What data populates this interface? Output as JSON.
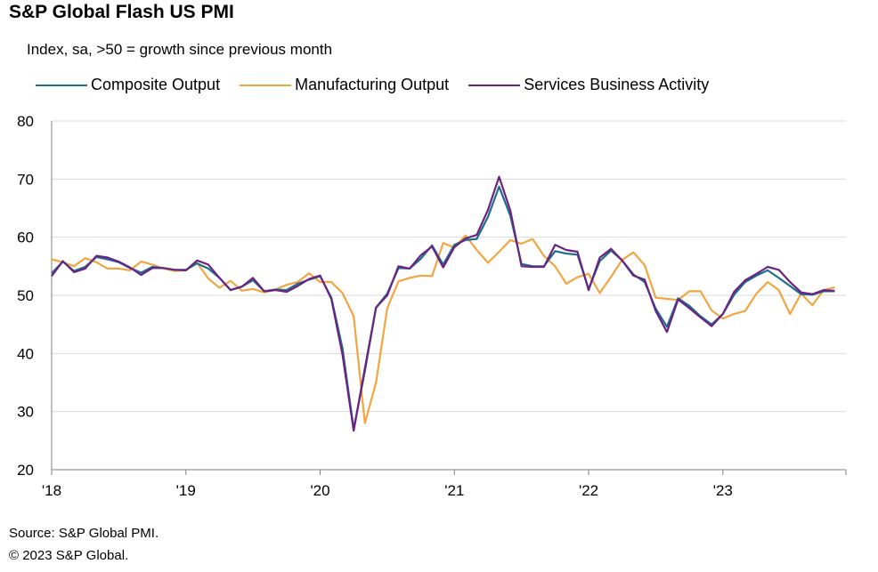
{
  "title": "S&P Global Flash US PMI",
  "subtitle": "Index, sa, >50 = growth since previous month",
  "footer": {
    "source": "Source: S&P Global PMI.",
    "copyright": "© 2023 S&P Global."
  },
  "chart_data": {
    "type": "line",
    "title": "S&P Global Flash US PMI",
    "subtitle": "Index, sa, >50 = growth since previous month",
    "x_start": "2018-01",
    "x_frequency": "monthly",
    "x_tick_labels": [
      "'18",
      "'19",
      "'20",
      "'21",
      "'22",
      "'23"
    ],
    "y_ticks": [
      20,
      30,
      40,
      50,
      60,
      70,
      80
    ],
    "ylim": [
      20,
      80
    ],
    "grid": "horizontal",
    "legend_position": "top",
    "series": [
      {
        "name": "Composite Output",
        "color": "#1f6e8c",
        "values": [
          53.8,
          55.8,
          54.2,
          54.9,
          56.6,
          56.2,
          55.7,
          54.7,
          53.9,
          54.9,
          54.7,
          54.4,
          54.4,
          55.5,
          54.6,
          53.0,
          50.9,
          51.5,
          52.6,
          50.7,
          51.0,
          50.9,
          52.0,
          52.7,
          53.3,
          49.6,
          40.9,
          27.0,
          37.0,
          47.9,
          50.3,
          54.7,
          54.6,
          56.3,
          58.6,
          55.3,
          58.7,
          59.5,
          59.7,
          63.5,
          68.7,
          63.7,
          55.4,
          55.0,
          55.0,
          57.6,
          57.2,
          57.0,
          51.1,
          55.9,
          57.7,
          56.0,
          53.6,
          52.3,
          47.7,
          44.6,
          49.5,
          48.2,
          46.4,
          45.0,
          46.8,
          50.1,
          52.3,
          53.4,
          54.3,
          53.0,
          51.6,
          50.2,
          50.1,
          50.7,
          50.7
        ]
      },
      {
        "name": "Manufacturing Output",
        "color": "#f2a541",
        "values": [
          56.2,
          55.7,
          55.0,
          56.4,
          55.7,
          54.6,
          54.6,
          54.3,
          55.8,
          55.3,
          54.6,
          54.2,
          54.3,
          55.6,
          52.9,
          51.3,
          52.5,
          50.8,
          51.1,
          50.5,
          51.0,
          51.8,
          52.3,
          53.8,
          52.3,
          52.3,
          50.4,
          46.4,
          28.0,
          35.0,
          47.8,
          52.4,
          53.0,
          53.4,
          53.3,
          59.0,
          58.2,
          60.3,
          57.8,
          55.6,
          57.5,
          59.5,
          58.9,
          59.7,
          56.8,
          55.0,
          52.0,
          53.1,
          53.7,
          50.4,
          53.2,
          56.1,
          57.4,
          55.2,
          49.6,
          49.4,
          49.2,
          50.7,
          50.7,
          47.4,
          46.0,
          46.8,
          47.3,
          50.3,
          52.3,
          50.9,
          46.8,
          50.3,
          48.3,
          50.9,
          51.4
        ]
      },
      {
        "name": "Services Business Activity",
        "color": "#6a2382",
        "values": [
          53.3,
          55.9,
          54.0,
          54.6,
          56.8,
          56.5,
          55.8,
          54.8,
          53.5,
          54.7,
          54.7,
          54.4,
          54.3,
          56.0,
          55.3,
          53.0,
          50.9,
          51.5,
          53.0,
          50.7,
          50.9,
          50.6,
          51.6,
          52.8,
          53.4,
          49.4,
          39.8,
          26.7,
          37.5,
          47.9,
          50.0,
          55.0,
          54.6,
          56.9,
          58.4,
          54.8,
          58.3,
          59.8,
          60.4,
          64.7,
          70.4,
          64.6,
          55.0,
          54.9,
          54.9,
          58.7,
          57.8,
          57.5,
          50.9,
          56.5,
          58.0,
          56.0,
          53.4,
          52.7,
          47.3,
          43.7,
          49.3,
          47.8,
          46.2,
          44.7,
          46.8,
          50.6,
          52.6,
          53.7,
          54.9,
          54.4,
          52.3,
          50.5,
          50.2,
          50.9,
          50.8
        ]
      }
    ]
  }
}
